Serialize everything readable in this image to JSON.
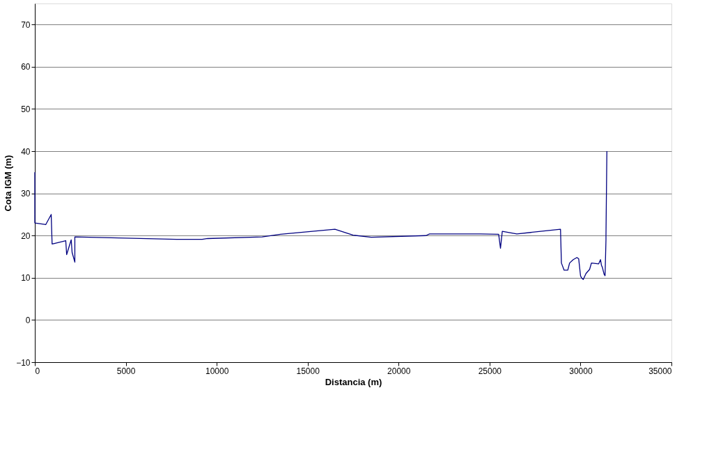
{
  "chart_data": {
    "type": "line",
    "xlabel": "Distancia (m)",
    "ylabel": "Cota IGM (m)",
    "xlim": [
      0,
      35000
    ],
    "xticks": [
      0,
      5000,
      10000,
      15000,
      20000,
      25000,
      30000,
      35000
    ],
    "ylim": [
      -10,
      75
    ],
    "yticks": [
      -10,
      0,
      10,
      20,
      30,
      40,
      50,
      60,
      70
    ],
    "grid": "y",
    "marker": "none",
    "line_style": "solid",
    "series": [
      {
        "color": "#000080",
        "x": [
          0,
          0,
          600,
          900,
          950,
          1700,
          1750,
          2000,
          2050,
          2200,
          2200,
          7800,
          9200,
          9500,
          12500,
          13500,
          16500,
          17500,
          18500,
          21500,
          21700,
          22100,
          24500,
          25500,
          25600,
          25700,
          26500,
          28900,
          28950,
          29100,
          29300,
          29400,
          29600,
          29800,
          29900,
          30000,
          30050,
          30150,
          30300,
          30500,
          30600,
          31000,
          31100,
          31150,
          31200,
          31300,
          31350,
          31400,
          31400,
          31450
        ],
        "values": [
          35,
          23,
          22.6,
          25,
          18,
          18.8,
          15.5,
          19,
          16,
          13.7,
          19.7,
          19.1,
          19.1,
          19.3,
          19.7,
          20.3,
          21.5,
          20.1,
          19.6,
          20,
          20.4,
          20.4,
          20.4,
          20.3,
          17,
          21,
          20.4,
          21.5,
          13.5,
          11.8,
          11.8,
          13.5,
          14.3,
          14.8,
          14.5,
          10.5,
          10,
          9.6,
          11,
          12,
          13.5,
          13.3,
          14.3,
          13,
          12.5,
          10.8,
          10.5,
          19,
          20,
          40
        ]
      }
    ]
  }
}
